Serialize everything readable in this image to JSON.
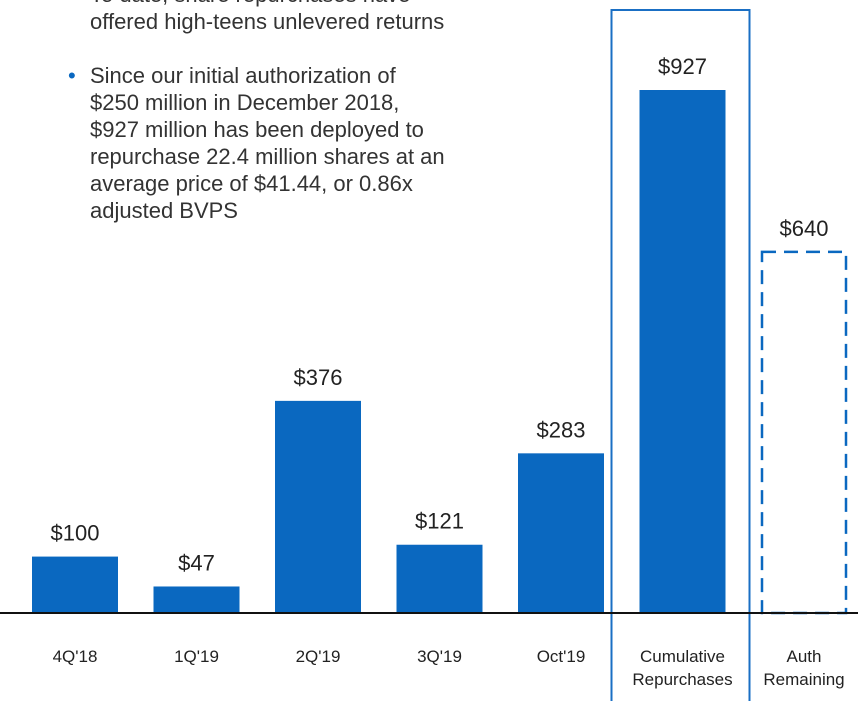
{
  "bullets": [
    [
      "To date, share repurchases have",
      "offered high-teens unlevered returns"
    ],
    [
      "Since our initial authorization of",
      "$250 million in December 2018,",
      "$927 million has been deployed to",
      "repurchase 22.4 million shares at an",
      "average price of $41.44, or 0.86x",
      "adjusted BVPS"
    ]
  ],
  "chart_data": {
    "type": "bar",
    "categories": [
      "4Q'18",
      "1Q'19",
      "2Q'19",
      "3Q'19",
      "Oct'19",
      "Cumulative Repurchases",
      "Auth Remaining"
    ],
    "values": [
      100,
      47,
      376,
      121,
      283,
      927,
      640
    ],
    "value_labels": [
      "$100",
      "$47",
      "$376",
      "$121",
      "$283",
      "$927",
      "$640"
    ],
    "color": "#0a68c0",
    "bar_styles": [
      "solid",
      "solid",
      "solid",
      "solid",
      "solid",
      "solid",
      "dashed"
    ],
    "highlight": 5
  }
}
